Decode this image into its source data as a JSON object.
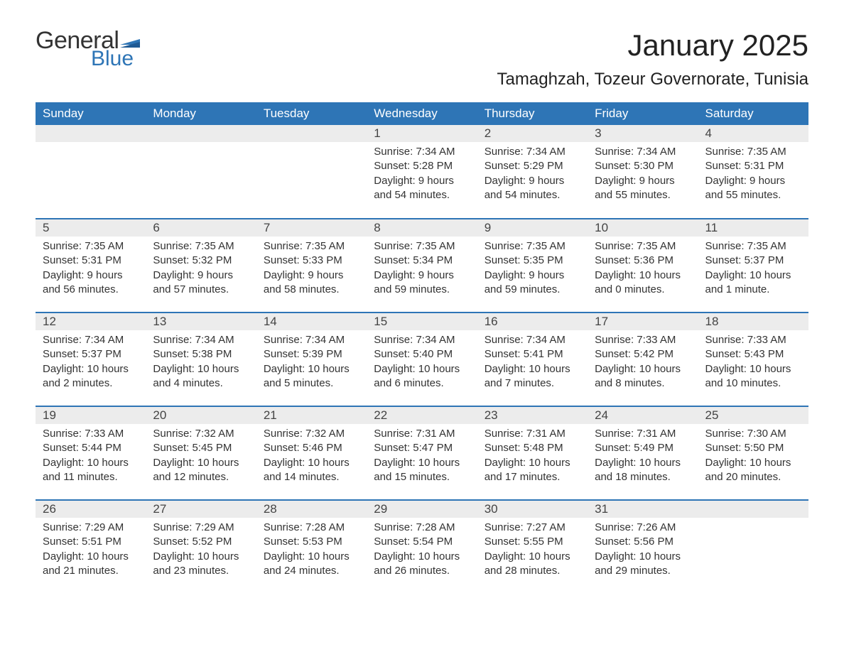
{
  "logo": {
    "general": "General",
    "blue": "Blue"
  },
  "title": "January 2025",
  "location": "Tamaghzah, Tozeur Governorate, Tunisia",
  "colors": {
    "header_bg": "#2e75b6",
    "header_text": "#ffffff",
    "daynum_bg": "#ececec",
    "rule": "#2e75b6",
    "body_text": "#333333",
    "logo_blue": "#2e75b6"
  },
  "dayHeaders": [
    "Sunday",
    "Monday",
    "Tuesday",
    "Wednesday",
    "Thursday",
    "Friday",
    "Saturday"
  ],
  "weeks": [
    [
      null,
      null,
      null,
      {
        "n": "1",
        "sunrise": "Sunrise: 7:34 AM",
        "sunset": "Sunset: 5:28 PM",
        "daylight": "Daylight: 9 hours and 54 minutes."
      },
      {
        "n": "2",
        "sunrise": "Sunrise: 7:34 AM",
        "sunset": "Sunset: 5:29 PM",
        "daylight": "Daylight: 9 hours and 54 minutes."
      },
      {
        "n": "3",
        "sunrise": "Sunrise: 7:34 AM",
        "sunset": "Sunset: 5:30 PM",
        "daylight": "Daylight: 9 hours and 55 minutes."
      },
      {
        "n": "4",
        "sunrise": "Sunrise: 7:35 AM",
        "sunset": "Sunset: 5:31 PM",
        "daylight": "Daylight: 9 hours and 55 minutes."
      }
    ],
    [
      {
        "n": "5",
        "sunrise": "Sunrise: 7:35 AM",
        "sunset": "Sunset: 5:31 PM",
        "daylight": "Daylight: 9 hours and 56 minutes."
      },
      {
        "n": "6",
        "sunrise": "Sunrise: 7:35 AM",
        "sunset": "Sunset: 5:32 PM",
        "daylight": "Daylight: 9 hours and 57 minutes."
      },
      {
        "n": "7",
        "sunrise": "Sunrise: 7:35 AM",
        "sunset": "Sunset: 5:33 PM",
        "daylight": "Daylight: 9 hours and 58 minutes."
      },
      {
        "n": "8",
        "sunrise": "Sunrise: 7:35 AM",
        "sunset": "Sunset: 5:34 PM",
        "daylight": "Daylight: 9 hours and 59 minutes."
      },
      {
        "n": "9",
        "sunrise": "Sunrise: 7:35 AM",
        "sunset": "Sunset: 5:35 PM",
        "daylight": "Daylight: 9 hours and 59 minutes."
      },
      {
        "n": "10",
        "sunrise": "Sunrise: 7:35 AM",
        "sunset": "Sunset: 5:36 PM",
        "daylight": "Daylight: 10 hours and 0 minutes."
      },
      {
        "n": "11",
        "sunrise": "Sunrise: 7:35 AM",
        "sunset": "Sunset: 5:37 PM",
        "daylight": "Daylight: 10 hours and 1 minute."
      }
    ],
    [
      {
        "n": "12",
        "sunrise": "Sunrise: 7:34 AM",
        "sunset": "Sunset: 5:37 PM",
        "daylight": "Daylight: 10 hours and 2 minutes."
      },
      {
        "n": "13",
        "sunrise": "Sunrise: 7:34 AM",
        "sunset": "Sunset: 5:38 PM",
        "daylight": "Daylight: 10 hours and 4 minutes."
      },
      {
        "n": "14",
        "sunrise": "Sunrise: 7:34 AM",
        "sunset": "Sunset: 5:39 PM",
        "daylight": "Daylight: 10 hours and 5 minutes."
      },
      {
        "n": "15",
        "sunrise": "Sunrise: 7:34 AM",
        "sunset": "Sunset: 5:40 PM",
        "daylight": "Daylight: 10 hours and 6 minutes."
      },
      {
        "n": "16",
        "sunrise": "Sunrise: 7:34 AM",
        "sunset": "Sunset: 5:41 PM",
        "daylight": "Daylight: 10 hours and 7 minutes."
      },
      {
        "n": "17",
        "sunrise": "Sunrise: 7:33 AM",
        "sunset": "Sunset: 5:42 PM",
        "daylight": "Daylight: 10 hours and 8 minutes."
      },
      {
        "n": "18",
        "sunrise": "Sunrise: 7:33 AM",
        "sunset": "Sunset: 5:43 PM",
        "daylight": "Daylight: 10 hours and 10 minutes."
      }
    ],
    [
      {
        "n": "19",
        "sunrise": "Sunrise: 7:33 AM",
        "sunset": "Sunset: 5:44 PM",
        "daylight": "Daylight: 10 hours and 11 minutes."
      },
      {
        "n": "20",
        "sunrise": "Sunrise: 7:32 AM",
        "sunset": "Sunset: 5:45 PM",
        "daylight": "Daylight: 10 hours and 12 minutes."
      },
      {
        "n": "21",
        "sunrise": "Sunrise: 7:32 AM",
        "sunset": "Sunset: 5:46 PM",
        "daylight": "Daylight: 10 hours and 14 minutes."
      },
      {
        "n": "22",
        "sunrise": "Sunrise: 7:31 AM",
        "sunset": "Sunset: 5:47 PM",
        "daylight": "Daylight: 10 hours and 15 minutes."
      },
      {
        "n": "23",
        "sunrise": "Sunrise: 7:31 AM",
        "sunset": "Sunset: 5:48 PM",
        "daylight": "Daylight: 10 hours and 17 minutes."
      },
      {
        "n": "24",
        "sunrise": "Sunrise: 7:31 AM",
        "sunset": "Sunset: 5:49 PM",
        "daylight": "Daylight: 10 hours and 18 minutes."
      },
      {
        "n": "25",
        "sunrise": "Sunrise: 7:30 AM",
        "sunset": "Sunset: 5:50 PM",
        "daylight": "Daylight: 10 hours and 20 minutes."
      }
    ],
    [
      {
        "n": "26",
        "sunrise": "Sunrise: 7:29 AM",
        "sunset": "Sunset: 5:51 PM",
        "daylight": "Daylight: 10 hours and 21 minutes."
      },
      {
        "n": "27",
        "sunrise": "Sunrise: 7:29 AM",
        "sunset": "Sunset: 5:52 PM",
        "daylight": "Daylight: 10 hours and 23 minutes."
      },
      {
        "n": "28",
        "sunrise": "Sunrise: 7:28 AM",
        "sunset": "Sunset: 5:53 PM",
        "daylight": "Daylight: 10 hours and 24 minutes."
      },
      {
        "n": "29",
        "sunrise": "Sunrise: 7:28 AM",
        "sunset": "Sunset: 5:54 PM",
        "daylight": "Daylight: 10 hours and 26 minutes."
      },
      {
        "n": "30",
        "sunrise": "Sunrise: 7:27 AM",
        "sunset": "Sunset: 5:55 PM",
        "daylight": "Daylight: 10 hours and 28 minutes."
      },
      {
        "n": "31",
        "sunrise": "Sunrise: 7:26 AM",
        "sunset": "Sunset: 5:56 PM",
        "daylight": "Daylight: 10 hours and 29 minutes."
      },
      null
    ]
  ]
}
